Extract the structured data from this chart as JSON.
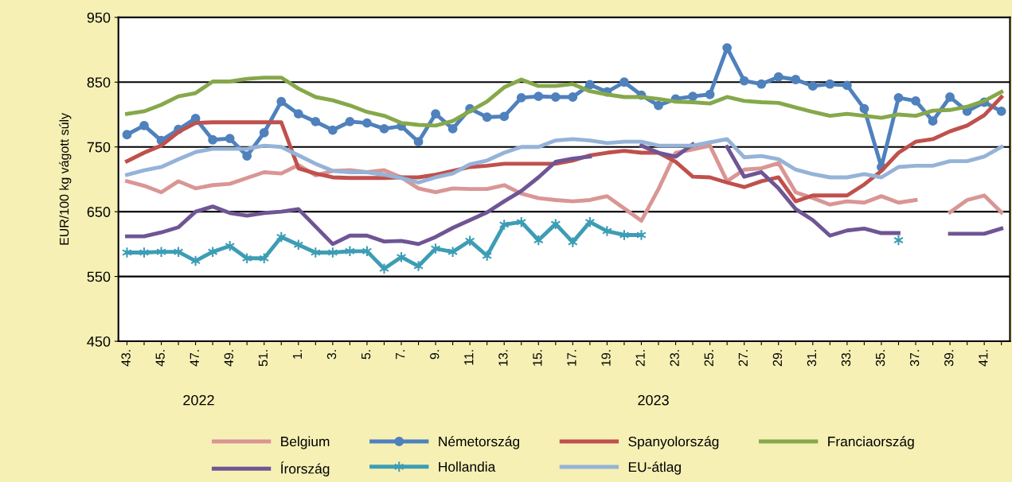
{
  "chart_data": {
    "type": "line",
    "ylabel": "EUR/100 kg vágott súly",
    "categories": [
      "43.",
      null,
      "45.",
      null,
      "47.",
      null,
      "49.",
      null,
      "51.",
      null,
      "1.",
      null,
      "3.",
      null,
      "5.",
      null,
      "7.",
      null,
      "9.",
      null,
      "11.",
      null,
      "13.",
      null,
      "15.",
      null,
      "17.",
      null,
      "19.",
      null,
      "21.",
      null,
      "23.",
      null,
      "25.",
      null,
      "27.",
      null,
      "29.",
      null,
      "31.",
      null,
      "33.",
      null,
      "35.",
      null,
      "37.",
      null,
      "39.",
      null,
      "41.",
      null
    ],
    "annotations": [
      "2022",
      "2023"
    ],
    "ylim": [
      450,
      950
    ],
    "yticks": [
      450,
      550,
      650,
      750,
      850,
      950
    ],
    "grid": "y",
    "legend": "bottom",
    "marker": "none",
    "line_style": "solid",
    "series": [
      {
        "name": "Belgium",
        "color": "#d99694",
        "values": [
          697,
          690,
          680,
          697,
          686,
          691,
          693,
          702,
          711,
          709,
          722,
          706,
          713,
          714,
          711,
          714,
          703,
          686,
          680,
          686,
          685,
          685,
          691,
          678,
          671,
          668,
          666,
          668,
          674,
          655,
          636,
          685,
          741,
          746,
          752,
          697,
          715,
          717,
          725,
          680,
          671,
          661,
          666,
          664,
          674,
          664,
          668,
          null,
          649,
          668,
          675,
          649
        ]
      },
      {
        "name": "Németország",
        "color": "#4f81bd",
        "marker": "circle",
        "values": [
          769,
          783,
          760,
          777,
          794,
          761,
          763,
          736,
          772,
          820,
          801,
          789,
          776,
          789,
          787,
          778,
          782,
          758,
          801,
          778,
          809,
          796,
          797,
          826,
          828,
          827,
          827,
          846,
          835,
          850,
          830,
          814,
          824,
          828,
          831,
          903,
          852,
          847,
          858,
          854,
          844,
          847,
          845,
          809,
          719,
          826,
          821,
          790,
          827,
          805,
          819,
          805
        ]
      },
      {
        "name": "Spanyolország",
        "color": "#c0504d",
        "values": [
          728,
          741,
          752,
          773,
          787,
          788,
          788,
          788,
          788,
          788,
          717,
          709,
          703,
          702,
          702,
          702,
          703,
          703,
          707,
          713,
          719,
          721,
          724,
          724,
          724,
          724,
          729,
          737,
          741,
          744,
          741,
          741,
          727,
          704,
          703,
          695,
          688,
          697,
          703,
          666,
          675,
          675,
          675,
          692,
          713,
          741,
          758,
          762,
          774,
          783,
          799,
          827
        ]
      },
      {
        "name": "Franciaország",
        "color": "#86a84a",
        "values": [
          801,
          805,
          815,
          828,
          833,
          851,
          851,
          855,
          857,
          857,
          840,
          827,
          822,
          814,
          804,
          798,
          787,
          784,
          783,
          790,
          805,
          820,
          842,
          854,
          844,
          844,
          847,
          836,
          831,
          827,
          827,
          824,
          820,
          819,
          817,
          827,
          821,
          819,
          818,
          811,
          804,
          798,
          801,
          798,
          795,
          800,
          798,
          806,
          807,
          812,
          821,
          835
        ]
      },
      {
        "name": "Írország",
        "color": "#6f5594",
        "values": [
          612,
          612,
          618,
          626,
          650,
          658,
          648,
          644,
          648,
          650,
          654,
          627,
          600,
          613,
          613,
          604,
          605,
          600,
          611,
          625,
          637,
          649,
          666,
          682,
          703,
          727,
          732,
          735,
          null,
          null,
          752,
          741,
          735,
          754,
          null,
          750,
          704,
          711,
          686,
          654,
          637,
          613,
          621,
          624,
          617,
          617,
          null,
          null,
          616,
          616,
          616,
          624
        ]
      },
      {
        "name": "Hollandia",
        "color": "#3d9db5",
        "marker": "cross",
        "values": [
          587,
          587,
          588,
          588,
          574,
          588,
          597,
          578,
          578,
          611,
          599,
          587,
          587,
          589,
          589,
          562,
          580,
          566,
          593,
          588,
          605,
          582,
          630,
          634,
          606,
          631,
          603,
          634,
          620,
          614,
          614,
          null,
          null,
          null,
          null,
          null,
          null,
          null,
          null,
          null,
          null,
          null,
          null,
          null,
          null,
          606,
          null,
          null,
          null,
          null,
          null,
          null
        ]
      },
      {
        "name": "EU-átlag",
        "color": "#95b3d7",
        "values": [
          707,
          714,
          719,
          731,
          742,
          747,
          747,
          747,
          752,
          750,
          737,
          724,
          713,
          711,
          711,
          707,
          702,
          695,
          703,
          709,
          723,
          729,
          741,
          750,
          750,
          760,
          762,
          760,
          756,
          758,
          758,
          752,
          752,
          752,
          757,
          762,
          734,
          736,
          731,
          715,
          708,
          703,
          703,
          708,
          703,
          719,
          721,
          721,
          728,
          728,
          735,
          750
        ]
      }
    ]
  }
}
